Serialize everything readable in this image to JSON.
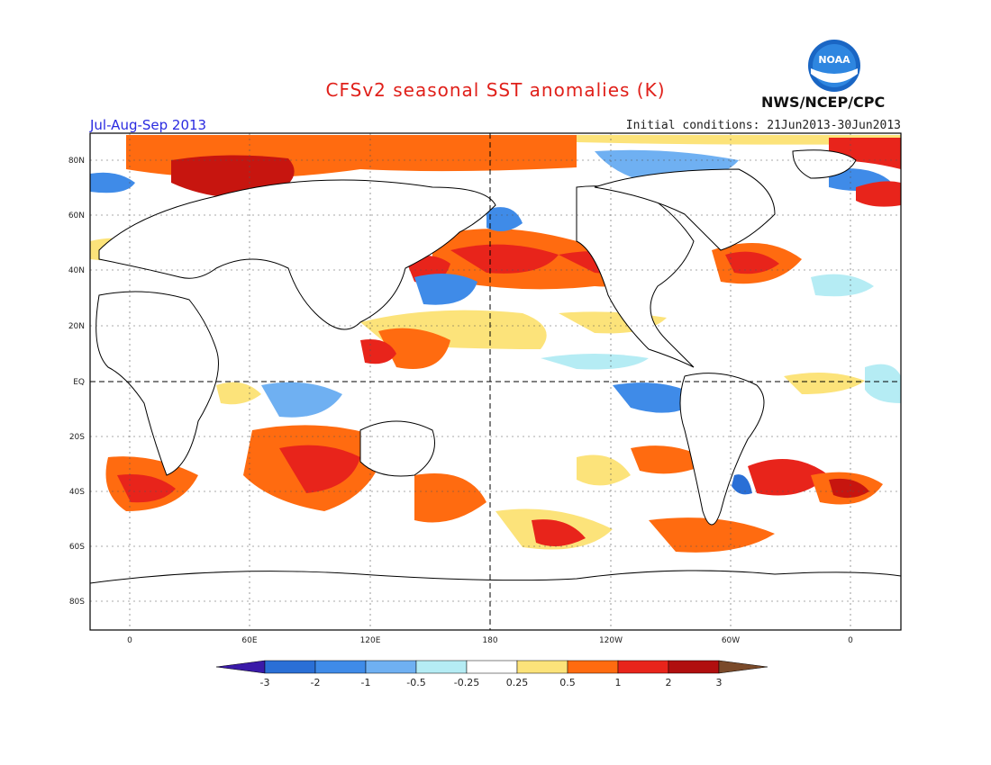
{
  "header": {
    "title": "CFSv2 seasonal SST anomalies (K)",
    "season": "Jul-Aug-Sep 2013",
    "initial_conditions": "Initial conditions: 21Jun2013-30Jun2013",
    "agency": "NWS/NCEP/CPC",
    "logo_text": "NOAA"
  },
  "map": {
    "lat_labels": [
      "80N",
      "60N",
      "40N",
      "20N",
      "EQ",
      "20S",
      "40S",
      "60S",
      "80S"
    ],
    "lon_labels": [
      "0",
      "60E",
      "120E",
      "180",
      "120W",
      "60W",
      "0"
    ]
  },
  "colorbar": {
    "labels": [
      "-3",
      "-2",
      "-1",
      "-0.5",
      "-0.25",
      "0.25",
      "0.5",
      "1",
      "2",
      "3"
    ],
    "colors": [
      "#3a1aa8",
      "#2a6fd6",
      "#3f8be8",
      "#6fb0f2",
      "#b5ecf4",
      "#ffffff",
      "#fce37a",
      "#ff6b10",
      "#e8241b",
      "#b00f0f",
      "#7a4a2a"
    ]
  }
}
